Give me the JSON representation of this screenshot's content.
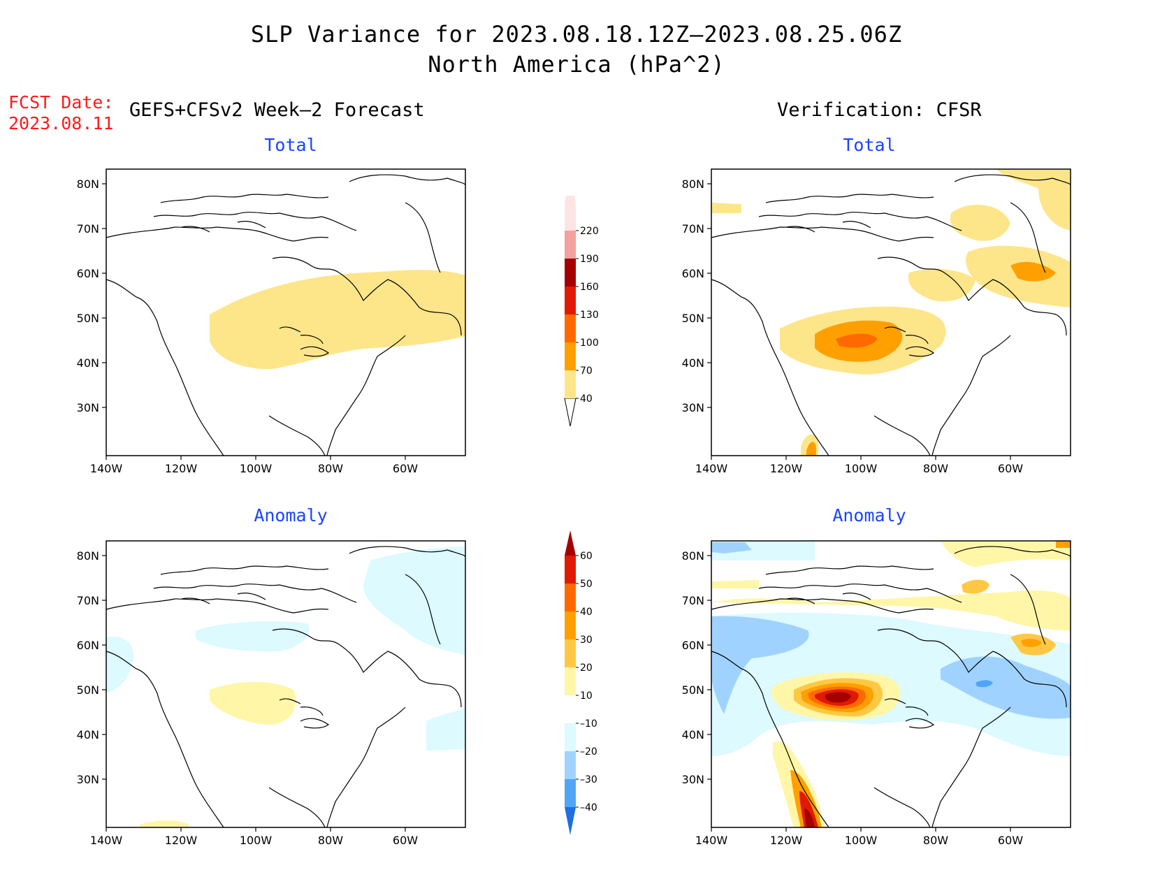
{
  "title": {
    "line1": "SLP Variance for 2023.08.18.12Z–2023.08.25.06Z",
    "line2": "North America (hPa^2)"
  },
  "fcst": {
    "label": "FCST Date:",
    "date": "2023.08.11"
  },
  "headers": {
    "left": "GEFS+CFSv2 Week–2 Forecast",
    "right": "Verification: CFSR"
  },
  "panels": [
    {
      "id": "forecast-total",
      "subtitle": "Total"
    },
    {
      "id": "verification-total",
      "subtitle": "Total"
    },
    {
      "id": "forecast-anomaly",
      "subtitle": "Anomaly"
    },
    {
      "id": "verification-anomaly",
      "subtitle": "Anomaly"
    }
  ],
  "axes": {
    "lat_labels": [
      "80N",
      "70N",
      "60N",
      "50N",
      "40N",
      "30N"
    ],
    "lon_labels": [
      "140W",
      "120W",
      "100W",
      "80W",
      "60W"
    ]
  },
  "colorbars": {
    "total": {
      "levels": [
        "40",
        "70",
        "100",
        "130",
        "160",
        "190",
        "220"
      ],
      "colors": [
        "#fde68a",
        "#ffa000",
        "#ff6a00",
        "#e01a00",
        "#a50000",
        "#f4a0a0",
        "#fde4e4"
      ]
    },
    "anomaly": {
      "levels": [
        "60",
        "50",
        "40",
        "30",
        "20",
        "10",
        "–10",
        "–20",
        "–30",
        "–40"
      ],
      "colors": [
        "#a50000",
        "#e01a00",
        "#ff6a00",
        "#ffa000",
        "#ffc844",
        "#fff6a8",
        "#ffffff",
        "#dcfaff",
        "#a0d2ff",
        "#50a5f5",
        "#1e6fe0"
      ]
    }
  },
  "chart_data": [
    {
      "type": "heatmap",
      "panel": "GEFS+CFSv2 Week–2 Forecast — Total",
      "units": "hPa^2",
      "xlim": [
        -140,
        -50
      ],
      "ylim": [
        25,
        85
      ],
      "features": [
        {
          "region": "central Canada to Labrador",
          "range": "40–70"
        }
      ]
    },
    {
      "type": "heatmap",
      "panel": "Verification: CFSR — Total",
      "units": "hPa^2",
      "xlim": [
        -140,
        -50
      ],
      "ylim": [
        25,
        85
      ],
      "features": [
        {
          "region": "southern Prairies",
          "range": "70–100",
          "peak": "100–130"
        },
        {
          "region": "Labrador Sea",
          "range": "70–100"
        },
        {
          "region": "Baja California",
          "range": "70–100"
        }
      ]
    },
    {
      "type": "heatmap",
      "panel": "GEFS+CFSv2 Week–2 Forecast — Anomaly",
      "units": "hPa^2",
      "xlim": [
        -140,
        -50
      ],
      "ylim": [
        25,
        85
      ],
      "features": [
        {
          "region": "southern Prairies",
          "range": "10–20"
        },
        {
          "region": "northeast Canada / Greenland",
          "range": "–10 to –20"
        }
      ]
    },
    {
      "type": "heatmap",
      "panel": "Verification: CFSR — Anomaly",
      "units": "hPa^2",
      "xlim": [
        -140,
        -50
      ],
      "ylim": [
        25,
        85
      ],
      "features": [
        {
          "region": "southern Prairies",
          "range": "40–60",
          "peak": ">60"
        },
        {
          "region": "Gulf of Alaska to Pacific coast",
          "range": "–20 to –30"
        },
        {
          "region": "Quebec / Maritimes",
          "range": "–20 to –40"
        },
        {
          "region": "Labrador Sea",
          "range": "20–40"
        },
        {
          "region": "Baja California",
          "range": "30–60"
        }
      ]
    }
  ]
}
